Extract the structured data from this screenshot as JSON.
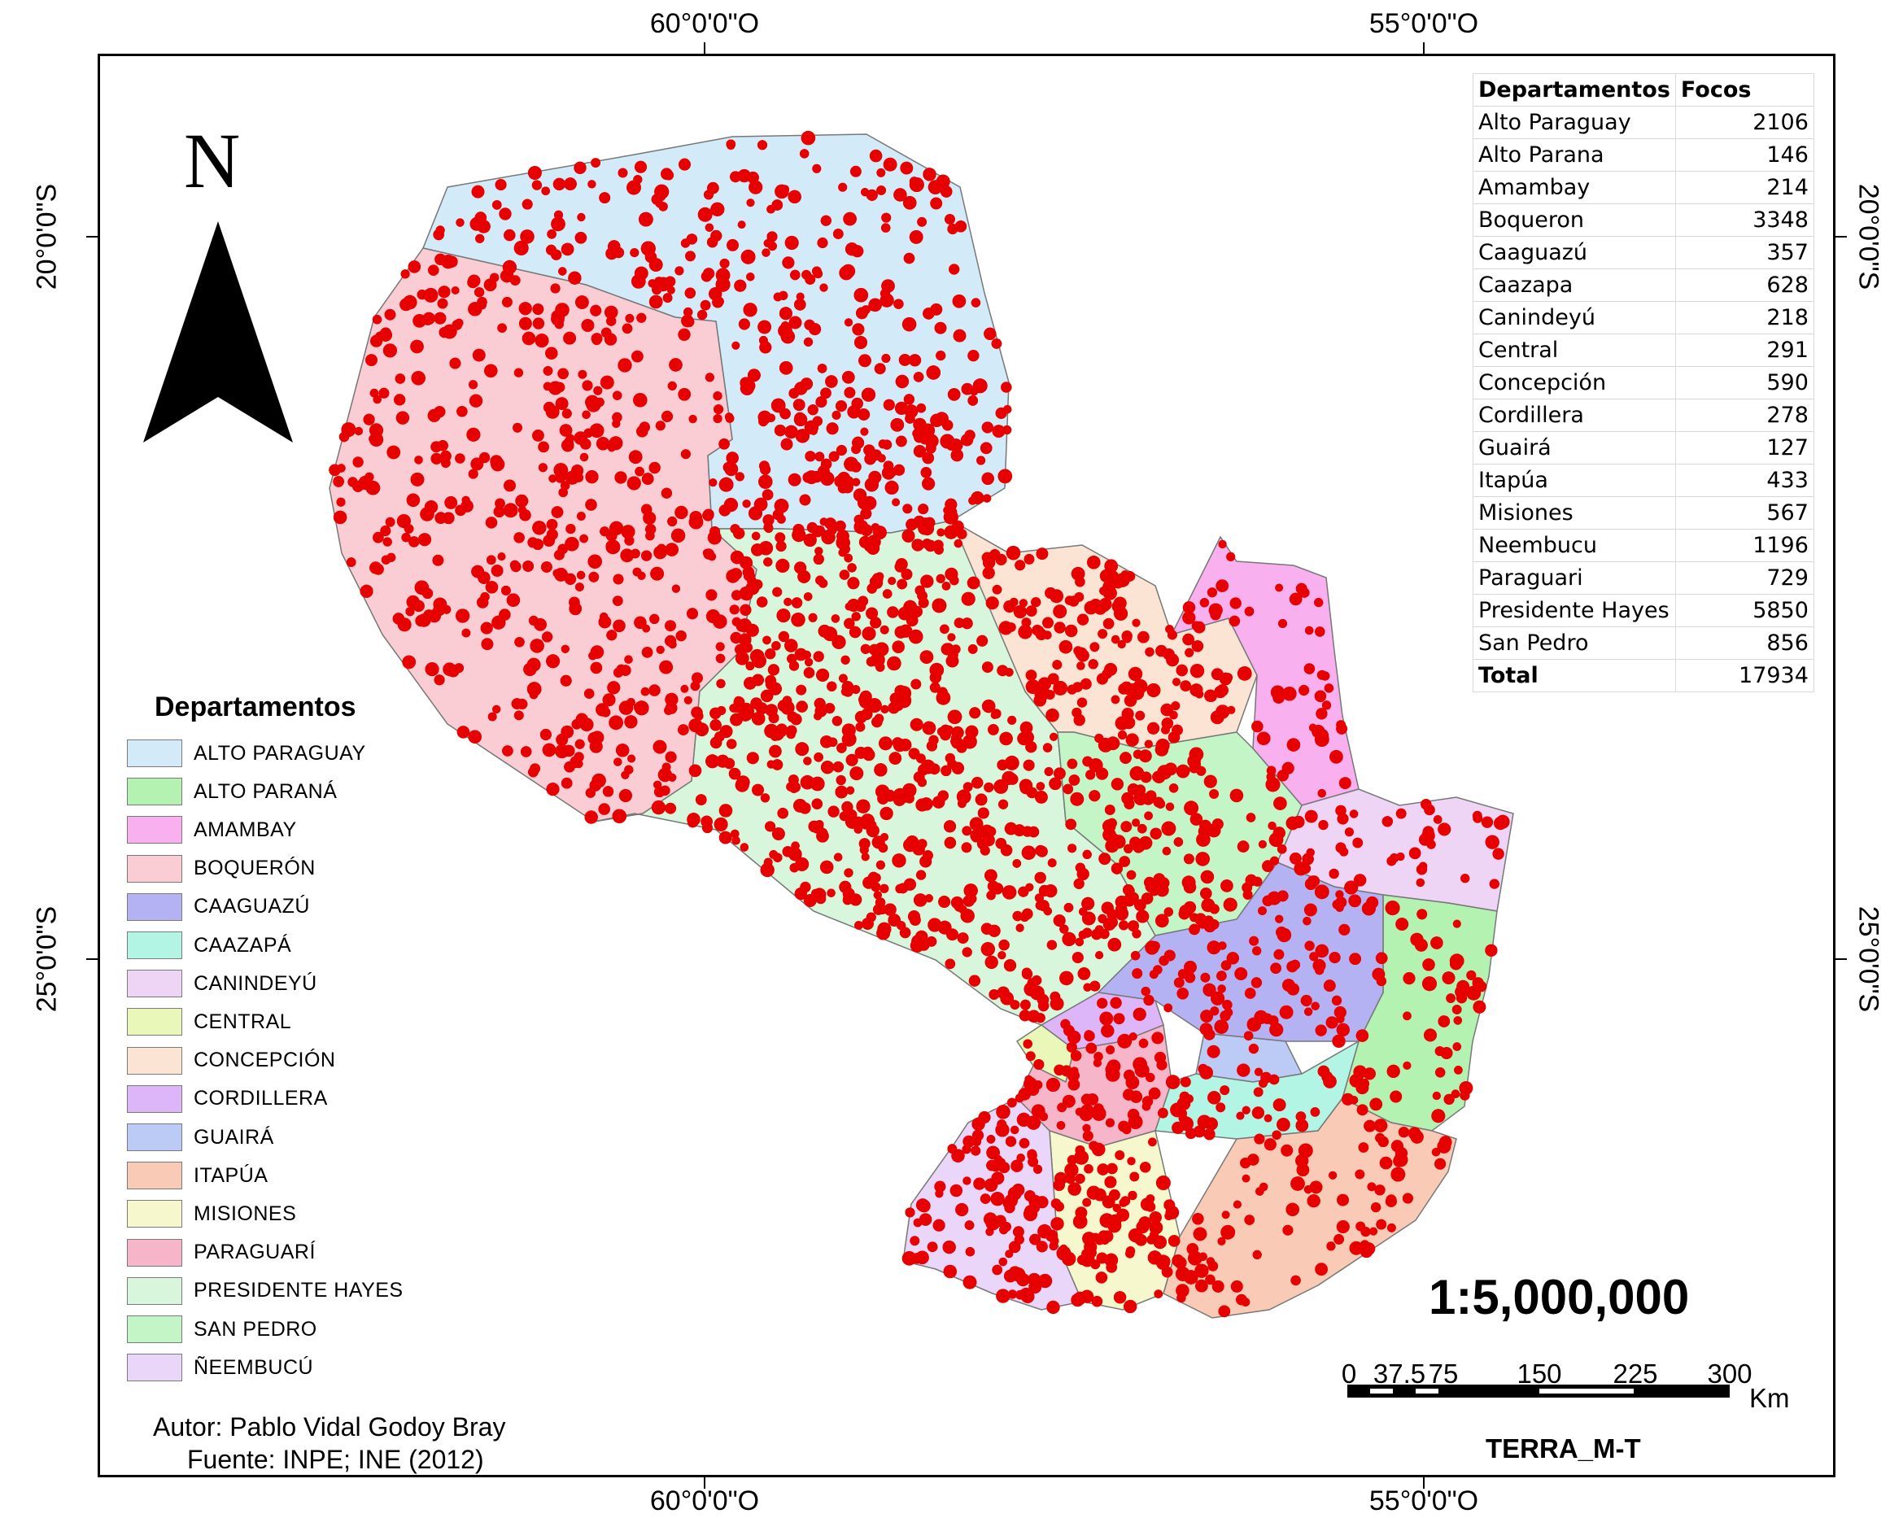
{
  "grid_labels": {
    "top": [
      "60°0'0\"O",
      "55°0'0\"O"
    ],
    "bottom": [
      "60°0'0\"O",
      "55°0'0\"O"
    ],
    "left": [
      "20°0'0\"S",
      "25°0'0\"S"
    ],
    "right": [
      "20°0'0\"S",
      "25°0'0\"S"
    ]
  },
  "north_arrow": {
    "letter": "N"
  },
  "legend": {
    "title": "Departamentos",
    "items": [
      {
        "label": "ALTO PARAGUAY",
        "color": "#d3eaf8"
      },
      {
        "label": "ALTO PARANÁ",
        "color": "#b3f2b0"
      },
      {
        "label": "AMAMBAY",
        "color": "#f8b0ee"
      },
      {
        "label": "BOQUERÓN",
        "color": "#f9cdd3"
      },
      {
        "label": "CAAGUAZÚ",
        "color": "#b4b2f2"
      },
      {
        "label": "CAAZAPÁ",
        "color": "#b2f5e4"
      },
      {
        "label": "CANINDEYÚ",
        "color": "#eed5f6"
      },
      {
        "label": "CENTRAL",
        "color": "#e9f8b8"
      },
      {
        "label": "CONCEPCIÓN",
        "color": "#fbe4d3"
      },
      {
        "label": "CORDILLERA",
        "color": "#dcb6f8"
      },
      {
        "label": "GUAIRÁ",
        "color": "#bccbf6"
      },
      {
        "label": "ITAPÚA",
        "color": "#f9cbb6"
      },
      {
        "label": "MISIONES",
        "color": "#f7f7cd"
      },
      {
        "label": "PARAGUARÍ",
        "color": "#f6b5c8"
      },
      {
        "label": "PRESIDENTE HAYES",
        "color": "#d7f6dc"
      },
      {
        "label": "SAN PEDRO",
        "color": "#c3f5c6"
      },
      {
        "label": "ÑEEMBUCÚ",
        "color": "#ead6f8"
      }
    ]
  },
  "table": {
    "headers": [
      "Departamentos",
      "Focos"
    ],
    "rows": [
      [
        "Alto Paraguay",
        "2106"
      ],
      [
        "Alto Parana",
        "146"
      ],
      [
        "Amambay",
        "214"
      ],
      [
        "Boqueron",
        "3348"
      ],
      [
        "Caaguazú",
        "357"
      ],
      [
        "Caazapa",
        "628"
      ],
      [
        "Canindeyú",
        "218"
      ],
      [
        "Central",
        "291"
      ],
      [
        "Concepción",
        "590"
      ],
      [
        "Cordillera",
        "278"
      ],
      [
        "Guairá",
        "127"
      ],
      [
        "Itapúa",
        "433"
      ],
      [
        "Misiones",
        "567"
      ],
      [
        "Neembucu",
        "1196"
      ],
      [
        "Paraguari",
        "729"
      ],
      [
        "Presidente Hayes",
        "5850"
      ],
      [
        "San Pedro",
        "856"
      ]
    ],
    "total": [
      "Total",
      "17934"
    ]
  },
  "scale": {
    "ratio": "1:5,000,000",
    "ticks": [
      "0",
      "37.5",
      "75",
      "150",
      "225",
      "300"
    ],
    "unit": "Km"
  },
  "sensor": "TERRA_M-T",
  "credits": {
    "author": "Autor: Pablo Vidal Godoy Bray",
    "source": "Fuente: INPE; INE (2012)"
  },
  "fire_color": "#e60000"
}
